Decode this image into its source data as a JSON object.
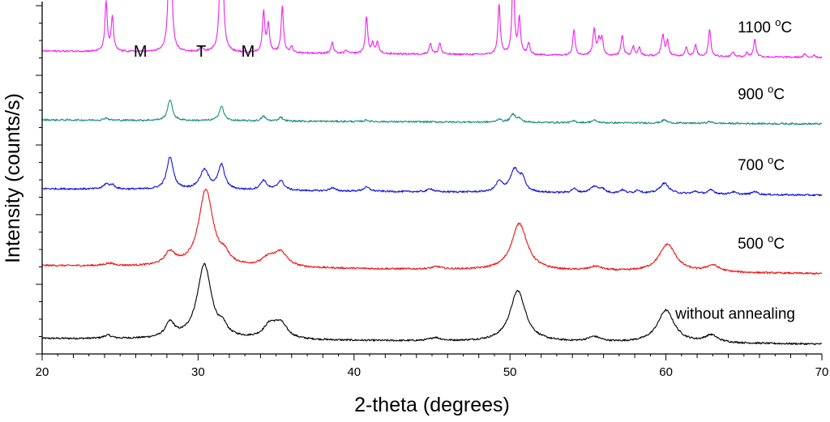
{
  "chart_data": {
    "type": "line",
    "title": "",
    "xlabel": "2-theta (degrees)",
    "ylabel": "Intensity (counts/s)",
    "xlim": [
      20,
      70
    ],
    "x_ticks": [
      "20",
      "30",
      "40",
      "50",
      "60",
      "70"
    ],
    "y_tick_labels": "none",
    "grid": false,
    "legend": "none",
    "phase_annotations": [
      {
        "text": "M",
        "x": 26.3
      },
      {
        "text": "T",
        "x": 30.2
      },
      {
        "text": "M",
        "x": 33.2
      }
    ],
    "series": [
      {
        "name": "without annealing",
        "color": "#000000",
        "label_parts": [
          "without annealing"
        ],
        "label_x": 60.6,
        "baseline": [
          [
            20,
            15
          ],
          [
            70,
            8
          ]
        ],
        "peaks": [
          {
            "x": 24.2,
            "h": 4,
            "w": 0.3
          },
          {
            "x": 28.2,
            "h": 18,
            "w": 0.35
          },
          {
            "x": 30.4,
            "h": 92,
            "w": 0.55
          },
          {
            "x": 31.6,
            "h": 10,
            "w": 0.3
          },
          {
            "x": 34.6,
            "h": 16,
            "w": 0.5
          },
          {
            "x": 35.3,
            "h": 18,
            "w": 0.5
          },
          {
            "x": 45.2,
            "h": 4,
            "w": 0.4
          },
          {
            "x": 50.5,
            "h": 63,
            "w": 0.6
          },
          {
            "x": 55.4,
            "h": 6,
            "w": 0.5
          },
          {
            "x": 60.0,
            "h": 40,
            "w": 0.65
          },
          {
            "x": 62.9,
            "h": 9,
            "w": 0.5
          }
        ]
      },
      {
        "name": "500 °C",
        "color": "#ee1111",
        "label_parts": [
          "500 ",
          "o",
          "C"
        ],
        "label_x": 64.6,
        "baseline": [
          [
            20,
            105
          ],
          [
            70,
            95
          ]
        ],
        "peaks": [
          {
            "x": 24.3,
            "h": 3,
            "w": 0.4
          },
          {
            "x": 28.2,
            "h": 16,
            "w": 0.4
          },
          {
            "x": 30.5,
            "h": 95,
            "w": 0.55
          },
          {
            "x": 31.7,
            "h": 10,
            "w": 0.35
          },
          {
            "x": 34.5,
            "h": 10,
            "w": 0.5
          },
          {
            "x": 35.3,
            "h": 18,
            "w": 0.5
          },
          {
            "x": 45.3,
            "h": 3,
            "w": 0.4
          },
          {
            "x": 50.6,
            "h": 58,
            "w": 0.6
          },
          {
            "x": 55.5,
            "h": 5,
            "w": 0.5
          },
          {
            "x": 60.1,
            "h": 34,
            "w": 0.65
          },
          {
            "x": 63.0,
            "h": 8,
            "w": 0.5
          }
        ]
      },
      {
        "name": "700 °C",
        "color": "#1111dd",
        "label_parts": [
          "700 ",
          "o",
          "C"
        ],
        "label_x": 64.6,
        "baseline": [
          [
            20,
            200
          ],
          [
            70,
            192
          ]
        ],
        "peaks": [
          {
            "x": 24.1,
            "h": 6,
            "w": 0.2
          },
          {
            "x": 24.5,
            "h": 5,
            "w": 0.2
          },
          {
            "x": 28.2,
            "h": 40,
            "w": 0.25
          },
          {
            "x": 30.4,
            "h": 24,
            "w": 0.35
          },
          {
            "x": 31.5,
            "h": 30,
            "w": 0.25
          },
          {
            "x": 34.2,
            "h": 12,
            "w": 0.25
          },
          {
            "x": 35.3,
            "h": 12,
            "w": 0.25
          },
          {
            "x": 38.6,
            "h": 4,
            "w": 0.2
          },
          {
            "x": 40.8,
            "h": 5,
            "w": 0.25
          },
          {
            "x": 44.9,
            "h": 4,
            "w": 0.2
          },
          {
            "x": 49.3,
            "h": 12,
            "w": 0.25
          },
          {
            "x": 50.3,
            "h": 28,
            "w": 0.35
          },
          {
            "x": 50.8,
            "h": 14,
            "w": 0.2
          },
          {
            "x": 54.1,
            "h": 5,
            "w": 0.2
          },
          {
            "x": 55.4,
            "h": 8,
            "w": 0.3
          },
          {
            "x": 55.9,
            "h": 5,
            "w": 0.2
          },
          {
            "x": 57.2,
            "h": 4,
            "w": 0.2
          },
          {
            "x": 58.2,
            "h": 4,
            "w": 0.2
          },
          {
            "x": 59.9,
            "h": 13,
            "w": 0.35
          },
          {
            "x": 61.9,
            "h": 3,
            "w": 0.2
          },
          {
            "x": 62.9,
            "h": 5,
            "w": 0.25
          },
          {
            "x": 64.3,
            "h": 3,
            "w": 0.2
          },
          {
            "x": 65.7,
            "h": 4,
            "w": 0.2
          }
        ]
      },
      {
        "name": "900 °C",
        "color": "#1a9080",
        "label_parts": [
          "900 ",
          "o",
          "C"
        ],
        "label_x": 64.6,
        "baseline": [
          [
            20,
            285
          ],
          [
            70,
            280
          ]
        ],
        "peaks": [
          {
            "x": 24.1,
            "h": 3,
            "w": 0.15
          },
          {
            "x": 28.2,
            "h": 26,
            "w": 0.18
          },
          {
            "x": 31.5,
            "h": 18,
            "w": 0.18
          },
          {
            "x": 34.2,
            "h": 6,
            "w": 0.15
          },
          {
            "x": 35.3,
            "h": 5,
            "w": 0.15
          },
          {
            "x": 40.8,
            "h": 2,
            "w": 0.15
          },
          {
            "x": 49.3,
            "h": 4,
            "w": 0.15
          },
          {
            "x": 50.2,
            "h": 10,
            "w": 0.2
          },
          {
            "x": 50.6,
            "h": 4,
            "w": 0.15
          },
          {
            "x": 54.1,
            "h": 2,
            "w": 0.15
          },
          {
            "x": 55.4,
            "h": 3,
            "w": 0.2
          },
          {
            "x": 59.9,
            "h": 4,
            "w": 0.2
          },
          {
            "x": 62.8,
            "h": 2,
            "w": 0.2
          }
        ]
      },
      {
        "name": "1100 °C",
        "color": "#ee22ee",
        "label_parts": [
          "1100 ",
          "o",
          "C"
        ],
        "label_x": 64.6,
        "baseline": [
          [
            20,
            370
          ],
          [
            70,
            362
          ]
        ],
        "peaks": [
          {
            "x": 24.1,
            "h": 60,
            "w": 0.09
          },
          {
            "x": 24.5,
            "h": 42,
            "w": 0.09
          },
          {
            "x": 28.2,
            "h": 240,
            "w": 0.09
          },
          {
            "x": 30.2,
            "h": 5,
            "w": 0.12
          },
          {
            "x": 31.5,
            "h": 250,
            "w": 0.09
          },
          {
            "x": 34.2,
            "h": 50,
            "w": 0.09
          },
          {
            "x": 34.5,
            "h": 35,
            "w": 0.09
          },
          {
            "x": 35.4,
            "h": 58,
            "w": 0.09
          },
          {
            "x": 36.0,
            "h": 8,
            "w": 0.09
          },
          {
            "x": 38.6,
            "h": 13,
            "w": 0.09
          },
          {
            "x": 39.5,
            "h": 4,
            "w": 0.09
          },
          {
            "x": 40.8,
            "h": 45,
            "w": 0.09
          },
          {
            "x": 41.2,
            "h": 12,
            "w": 0.09
          },
          {
            "x": 41.5,
            "h": 14,
            "w": 0.09
          },
          {
            "x": 44.9,
            "h": 14,
            "w": 0.09
          },
          {
            "x": 45.5,
            "h": 14,
            "w": 0.09
          },
          {
            "x": 49.3,
            "h": 62,
            "w": 0.09
          },
          {
            "x": 50.2,
            "h": 96,
            "w": 0.09
          },
          {
            "x": 50.6,
            "h": 45,
            "w": 0.09
          },
          {
            "x": 51.2,
            "h": 14,
            "w": 0.09
          },
          {
            "x": 54.1,
            "h": 32,
            "w": 0.09
          },
          {
            "x": 55.4,
            "h": 32,
            "w": 0.1
          },
          {
            "x": 55.7,
            "h": 18,
            "w": 0.09
          },
          {
            "x": 55.9,
            "h": 20,
            "w": 0.09
          },
          {
            "x": 57.2,
            "h": 25,
            "w": 0.09
          },
          {
            "x": 57.9,
            "h": 12,
            "w": 0.09
          },
          {
            "x": 58.3,
            "h": 10,
            "w": 0.09
          },
          {
            "x": 59.8,
            "h": 26,
            "w": 0.1
          },
          {
            "x": 60.1,
            "h": 18,
            "w": 0.09
          },
          {
            "x": 61.3,
            "h": 12,
            "w": 0.09
          },
          {
            "x": 61.9,
            "h": 14,
            "w": 0.09
          },
          {
            "x": 62.8,
            "h": 34,
            "w": 0.09
          },
          {
            "x": 64.3,
            "h": 6,
            "w": 0.09
          },
          {
            "x": 65.2,
            "h": 5,
            "w": 0.09
          },
          {
            "x": 65.7,
            "h": 22,
            "w": 0.09
          },
          {
            "x": 68.9,
            "h": 4,
            "w": 0.09
          },
          {
            "x": 69.5,
            "h": 3,
            "w": 0.09
          }
        ]
      }
    ]
  }
}
